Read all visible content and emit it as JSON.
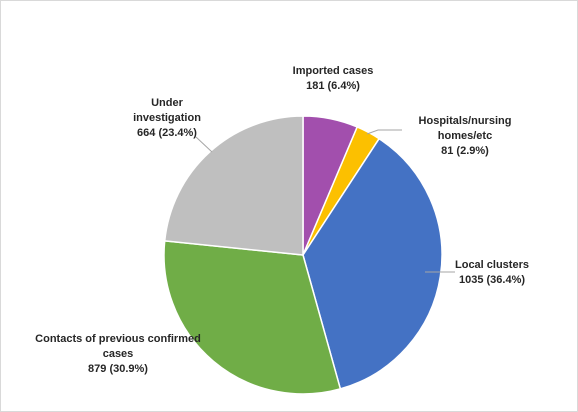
{
  "chart_data": {
    "type": "pie",
    "title": "",
    "legend": "none",
    "slices": [
      {
        "category": "Imported cases",
        "value": 181,
        "percent": "6.4%",
        "color": "#a24fad",
        "label_lines": [
          "Imported cases"
        ],
        "value_text": "181 (6.4%)"
      },
      {
        "category": "Hospitals/nursing homes/etc",
        "value": 81,
        "percent": "2.9%",
        "color": "#fcc000",
        "label_lines": [
          "Hospitals/nursing",
          "homes/etc"
        ],
        "value_text": "81 (2.9%)"
      },
      {
        "category": "Local clusters",
        "value": 1035,
        "percent": "36.4%",
        "color": "#4472c4",
        "label_lines": [
          "Local clusters"
        ],
        "value_text": "1035 (36.4%)"
      },
      {
        "category": "Contacts of previous confirmed cases",
        "value": 879,
        "percent": "30.9%",
        "color": "#70ad47",
        "label_lines": [
          "Contacts of previous confirmed",
          "cases"
        ],
        "value_text": "879 (30.9%)"
      },
      {
        "category": "Under investigation",
        "value": 664,
        "percent": "23.4%",
        "color": "#bfbfbf",
        "label_lines": [
          "Under",
          "investigation"
        ],
        "value_text": "664 (23.4%)"
      }
    ]
  }
}
